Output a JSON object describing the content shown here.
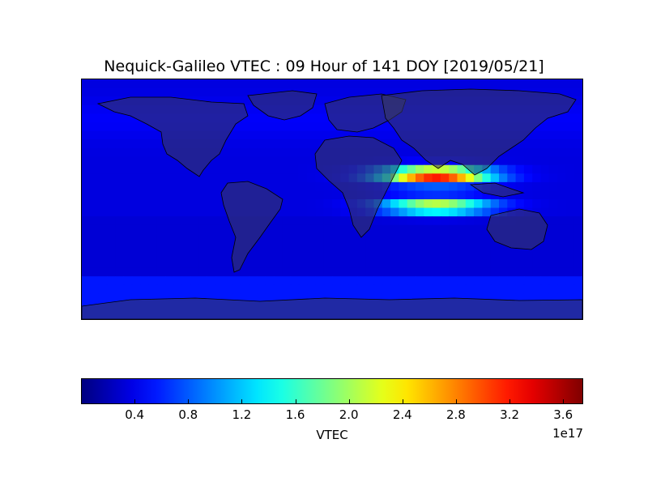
{
  "title": "Nequick-Galileo VTEC : 09 Hour of 141 DOY [2019/05/21]",
  "colorbar": {
    "label": "VTEC",
    "exponent": "1e17",
    "colormap": "jet",
    "min": 0.0,
    "max": 3.75,
    "ticks": [
      "0.4",
      "0.8",
      "1.2",
      "1.6",
      "2.0",
      "2.4",
      "2.8",
      "3.2",
      "3.6"
    ],
    "tick_values": [
      0.4,
      0.8,
      1.2,
      1.6,
      2.0,
      2.4,
      2.8,
      3.2,
      3.6
    ]
  },
  "map": {
    "projection": "cylindrical",
    "land_overlay": "#3a3a55",
    "features": {
      "crest_latitude_deg": 18,
      "crest_center_longitude_deg": 75,
      "peak_value_1e17": 3.5,
      "background_value_1e17": 0.35
    }
  }
}
